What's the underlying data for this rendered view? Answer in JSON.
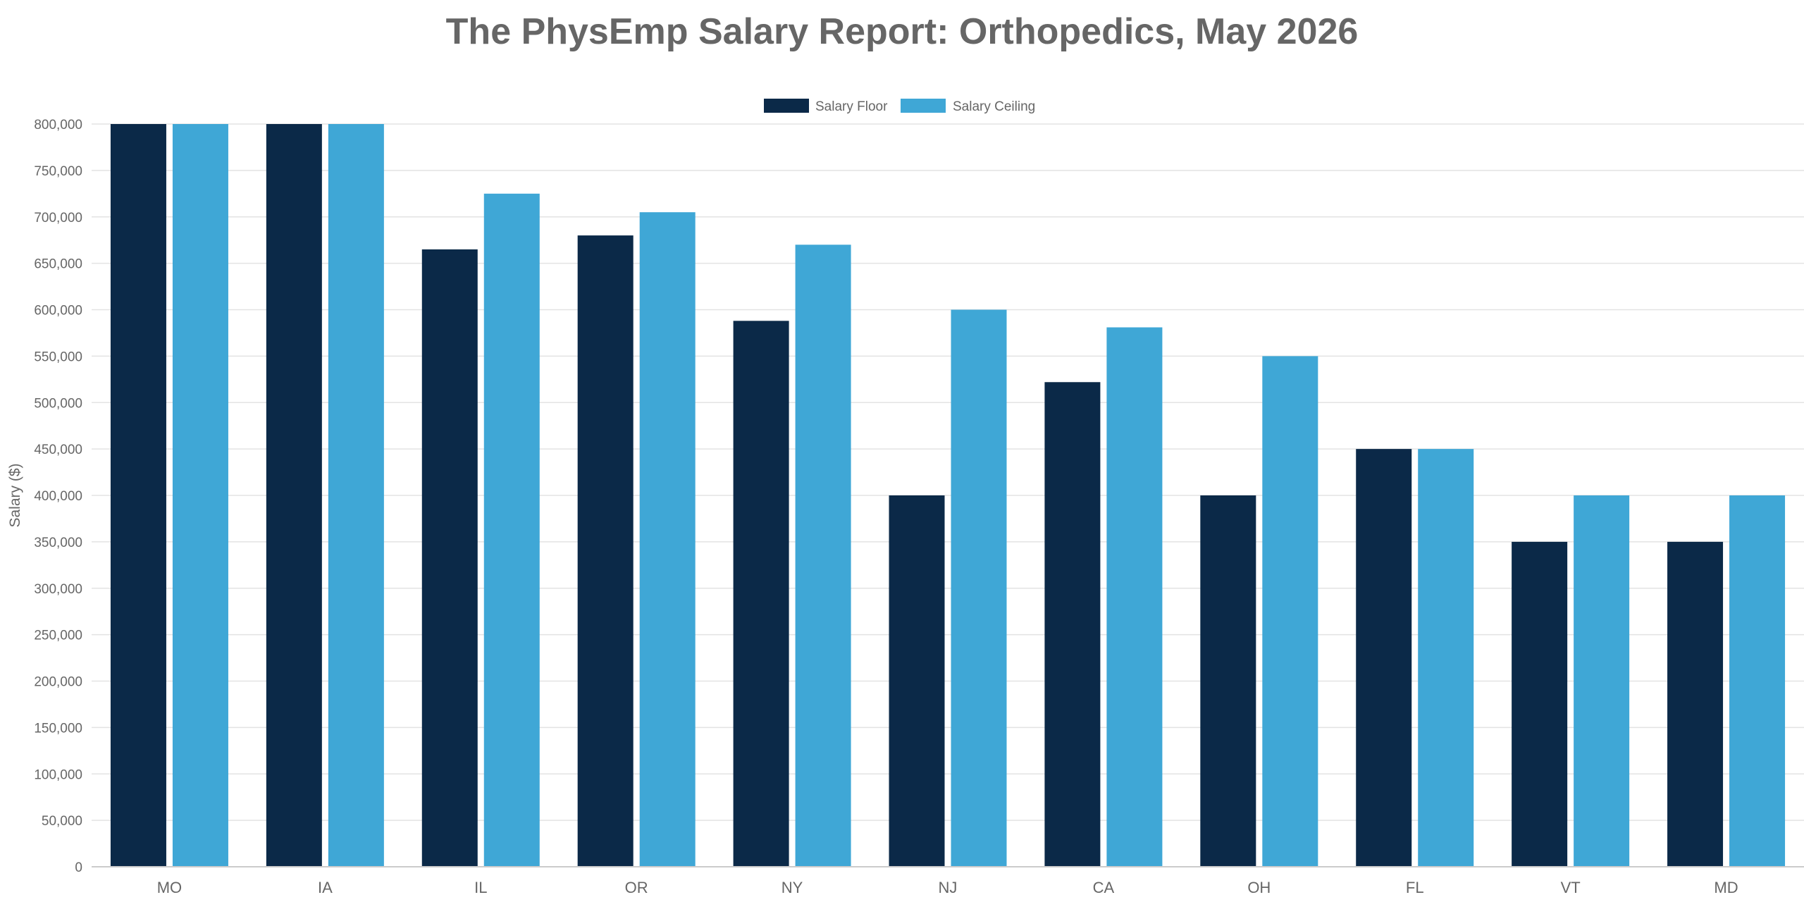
{
  "chart_data": {
    "type": "bar",
    "title": "The PhysEmp Salary Report: Orthopedics, May 2026",
    "xlabel": "",
    "ylabel": "Salary ($)",
    "ylim": [
      0,
      800000
    ],
    "yticks": [
      0,
      50000,
      100000,
      150000,
      200000,
      250000,
      300000,
      350000,
      400000,
      450000,
      500000,
      550000,
      600000,
      650000,
      700000,
      750000,
      800000
    ],
    "ytick_labels": [
      "0",
      "50,000",
      "100,000",
      "150,000",
      "200,000",
      "250,000",
      "300,000",
      "350,000",
      "400,000",
      "450,000",
      "500,000",
      "550,000",
      "600,000",
      "650,000",
      "700,000",
      "750,000",
      "800,000"
    ],
    "grid": true,
    "legend": "top-center",
    "categories": [
      "MO",
      "IA",
      "IL",
      "OR",
      "NY",
      "NJ",
      "CA",
      "OH",
      "FL",
      "VT",
      "MD"
    ],
    "series": [
      {
        "name": "Salary Floor",
        "color": "#0b2948",
        "values": [
          800000,
          800000,
          665000,
          680000,
          588000,
          400000,
          522000,
          400000,
          450000,
          350000,
          350000
        ]
      },
      {
        "name": "Salary Ceiling",
        "color": "#3fa7d6",
        "values": [
          800000,
          800000,
          725000,
          705000,
          670000,
          600000,
          581000,
          550000,
          450000,
          400000,
          400000
        ]
      }
    ]
  }
}
